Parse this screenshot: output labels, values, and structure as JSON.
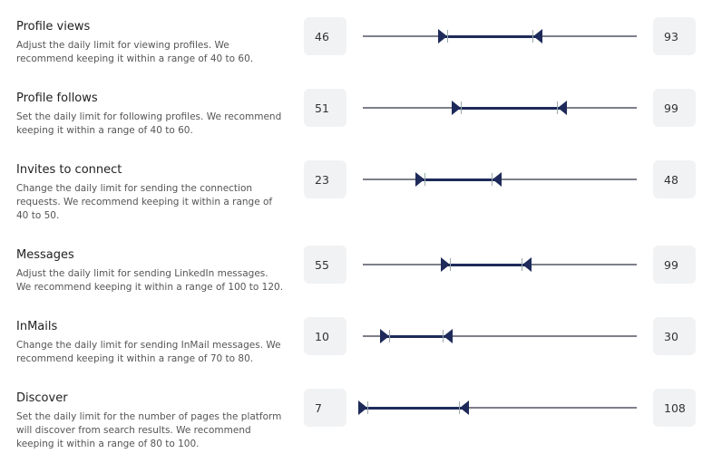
{
  "accent": "#1e2a5a",
  "limits": [
    {
      "title": "Profile views",
      "desc": "Adjust the daily limit for viewing profiles. We recommend keeping it within a range of 40 to 60.",
      "min": "46",
      "max": "93",
      "low_fraction": 0.29,
      "high_fraction": 0.64
    },
    {
      "title": "Profile follows",
      "desc": "Set the daily limit for following profiles. We recommend keeping it within a range of 40 to 60.",
      "min": "51",
      "max": "99",
      "low_fraction": 0.34,
      "high_fraction": 0.73
    },
    {
      "title": "Invites to connect",
      "desc": "Change the daily limit for sending the connection requests. We recommend keeping it within a range of 40 to 50.",
      "min": "23",
      "max": "48",
      "low_fraction": 0.21,
      "high_fraction": 0.49
    },
    {
      "title": "Messages",
      "desc": "Adjust the daily limit for sending LinkedIn messages. We recommend keeping it within a range of 100 to 120.",
      "min": "55",
      "max": "99",
      "low_fraction": 0.3,
      "high_fraction": 0.6
    },
    {
      "title": "InMails",
      "desc": "Change the daily limit for sending InMail messages. We recommend keeping it within a range of 70 to 80.",
      "min": "10",
      "max": "30",
      "low_fraction": 0.08,
      "high_fraction": 0.31
    },
    {
      "title": "Discover",
      "desc": "Set the daily limit for the number of pages the platform will discover from search results. We recommend keeping it within a range of 80 to 100.",
      "min": "7",
      "max": "108",
      "low_fraction": 0.0,
      "high_fraction": 0.37
    }
  ]
}
